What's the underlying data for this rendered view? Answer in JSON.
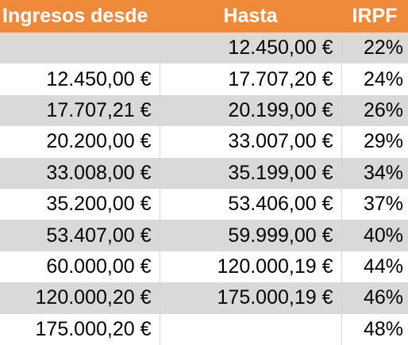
{
  "table": {
    "headers": {
      "from": "Ingresos desde",
      "to": "Hasta",
      "rate": "IRPF"
    },
    "rows": [
      {
        "from": "",
        "to": "12.450,00 €",
        "rate": "22%"
      },
      {
        "from": "12.450,00 €",
        "to": "17.707,20 €",
        "rate": "24%"
      },
      {
        "from": "17.707,21 €",
        "to": "20.199,00 €",
        "rate": "26%"
      },
      {
        "from": "20.200,00 €",
        "to": "33.007,00 €",
        "rate": "29%"
      },
      {
        "from": "33.008,00 €",
        "to": "35.199,00 €",
        "rate": "34%"
      },
      {
        "from": "35.200,00 €",
        "to": "53.406,00 €",
        "rate": "37%"
      },
      {
        "from": "53.407,00 €",
        "to": "59.999,00 €",
        "rate": "40%"
      },
      {
        "from": "60.000,00 €",
        "to": "120.000,19 €",
        "rate": "44%"
      },
      {
        "from": "120.000,20 €",
        "to": "175.000,19 €",
        "rate": "46%"
      },
      {
        "from": "175.000,20 €",
        "to": "",
        "rate": "48%"
      }
    ]
  },
  "colors": {
    "header_bg": "#ef8a3a",
    "header_text": "#ffffff",
    "stripe_bg": "#d9d9d9",
    "row_bg": "#ffffff"
  }
}
